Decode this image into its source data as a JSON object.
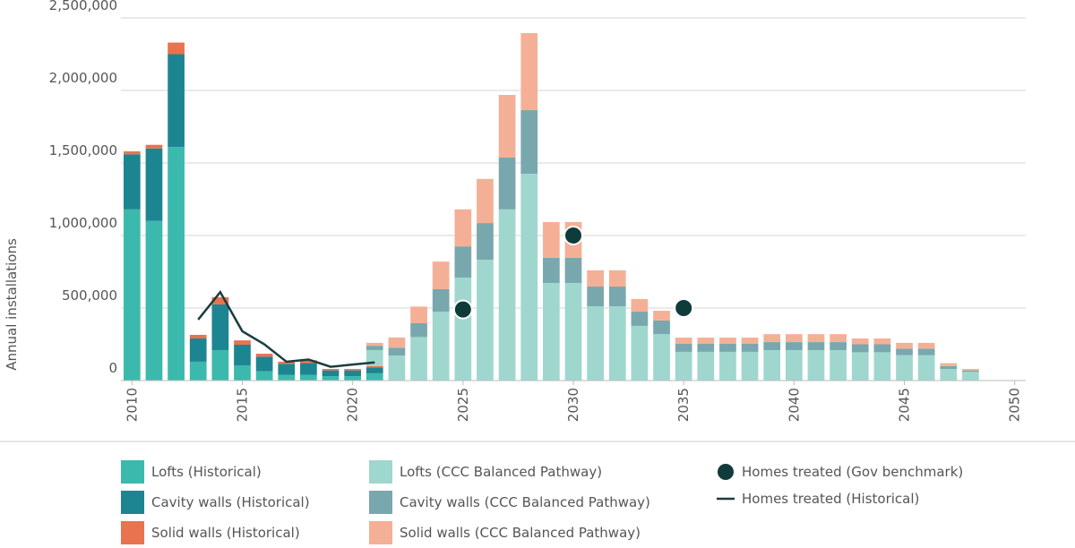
{
  "chart_data": {
    "type": "bar",
    "stacked": true,
    "y_label": "Annual installations",
    "x": [
      2010,
      2011,
      2012,
      2013,
      2014,
      2015,
      2016,
      2017,
      2018,
      2019,
      2020,
      2021,
      2022,
      2023,
      2024,
      2025,
      2026,
      2027,
      2028,
      2029,
      2030,
      2031,
      2032,
      2033,
      2034,
      2035,
      2036,
      2037,
      2038,
      2039,
      2040,
      2041,
      2042,
      2043,
      2044,
      2045,
      2046,
      2047,
      2048
    ],
    "xlim": [
      2009.5,
      2050.5
    ],
    "xticks": [
      2010,
      2015,
      2020,
      2025,
      2030,
      2035,
      2040,
      2045,
      2050
    ],
    "ylim": [
      0,
      2500000
    ],
    "yticks": [
      0,
      {
        "value": 500000,
        "label": "500,000"
      },
      {
        "value": 1000000,
        "label": "1,000,000"
      },
      {
        "value": 1500000,
        "label": "1,500,000"
      },
      {
        "value": 2000000,
        "label": "2,000,000"
      },
      {
        "value": 2500000,
        "label": "2,500,000"
      }
    ],
    "grid": true,
    "legend": "bottom",
    "series": [
      {
        "name": "Lofts (Historical)",
        "type": "bar",
        "color": "#3cb9ad",
        "values": [
          1180000,
          1100000,
          1610000,
          130000,
          210000,
          105000,
          65000,
          40000,
          40000,
          30000,
          30000,
          50000,
          null,
          null,
          null,
          null,
          null,
          null,
          null,
          null,
          null,
          null,
          null,
          null,
          null,
          null,
          null,
          null,
          null,
          null,
          null,
          null,
          null,
          null,
          null,
          null,
          null,
          null,
          null
        ]
      },
      {
        "name": "Cavity walls (Historical)",
        "type": "bar",
        "color": "#1d8591",
        "values": [
          380000,
          500000,
          640000,
          160000,
          315000,
          142000,
          100000,
          75000,
          80000,
          40000,
          40000,
          40000,
          null,
          null,
          null,
          null,
          null,
          null,
          null,
          null,
          null,
          null,
          null,
          null,
          null,
          null,
          null,
          null,
          null,
          null,
          null,
          null,
          null,
          null,
          null,
          null,
          null,
          null,
          null
        ]
      },
      {
        "name": "Solid walls (Historical)",
        "type": "bar",
        "color": "#e8734f",
        "values": [
          20000,
          25000,
          80000,
          25000,
          50000,
          30000,
          20000,
          15000,
          20000,
          10000,
          10000,
          10000,
          null,
          null,
          null,
          null,
          null,
          null,
          null,
          null,
          null,
          null,
          null,
          null,
          null,
          null,
          null,
          null,
          null,
          null,
          null,
          null,
          null,
          null,
          null,
          null,
          null,
          null,
          null
        ]
      },
      {
        "name": "Lofts (CCC Balanced Pathway)",
        "type": "bar",
        "color": "#9fd7cf",
        "values": [
          null,
          null,
          null,
          null,
          null,
          null,
          null,
          null,
          null,
          null,
          null,
          110000,
          172000,
          300000,
          475000,
          710000,
          833000,
          1180000,
          1426000,
          673000,
          673000,
          512000,
          512000,
          377000,
          321000,
          198000,
          198000,
          198000,
          198000,
          210000,
          210000,
          210000,
          210000,
          195000,
          195000,
          175000,
          175000,
          80000,
          60000
        ]
      },
      {
        "name": "Cavity walls (CCC Balanced Pathway)",
        "type": "bar",
        "color": "#78a8ad",
        "values": [
          null,
          null,
          null,
          null,
          null,
          null,
          null,
          null,
          null,
          null,
          null,
          30000,
          55000,
          95000,
          155000,
          215000,
          253000,
          357000,
          438000,
          173000,
          173000,
          136000,
          136000,
          98000,
          93000,
          55000,
          55000,
          55000,
          55000,
          55000,
          55000,
          55000,
          55000,
          55000,
          55000,
          45000,
          45000,
          20000,
          10000
        ]
      },
      {
        "name": "Solid walls (CCC Balanced Pathway)",
        "type": "bar",
        "color": "#f4b096",
        "values": [
          null,
          null,
          null,
          null,
          null,
          null,
          null,
          null,
          null,
          null,
          null,
          20000,
          70000,
          115000,
          190000,
          255000,
          304000,
          432000,
          531000,
          247000,
          247000,
          112000,
          112000,
          87000,
          67000,
          43000,
          43000,
          43000,
          43000,
          55000,
          55000,
          55000,
          55000,
          40000,
          40000,
          40000,
          40000,
          20000,
          10000
        ]
      },
      {
        "name": "Homes treated (Gov benchmark)",
        "type": "scatter",
        "color": "#0f3b3a",
        "values": [
          null,
          null,
          null,
          null,
          null,
          null,
          null,
          null,
          null,
          null,
          null,
          null,
          null,
          null,
          null,
          490000,
          null,
          null,
          null,
          null,
          1000000,
          null,
          null,
          null,
          null,
          500000,
          null,
          null,
          null,
          null,
          null,
          null,
          null,
          null,
          null,
          null,
          null,
          null,
          null
        ]
      },
      {
        "name": "Homes treated (Historical)",
        "type": "line",
        "color": "#1b3d3d",
        "values": [
          null,
          null,
          null,
          420000,
          610000,
          340000,
          250000,
          130000,
          145000,
          95000,
          110000,
          125000,
          null,
          null,
          null,
          null,
          null,
          null,
          null,
          null,
          null,
          null,
          null,
          null,
          null,
          null,
          null,
          null,
          null,
          null,
          null,
          null,
          null,
          null,
          null,
          null,
          null,
          null,
          null
        ]
      }
    ]
  }
}
